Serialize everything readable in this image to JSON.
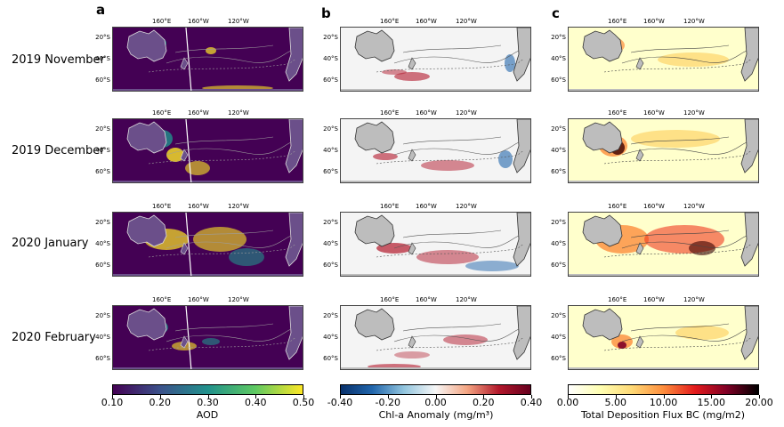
{
  "panel_letters": [
    "a",
    "b",
    "c"
  ],
  "rows": [
    "2019 November",
    "2019 December",
    "2020 January",
    "2020 February"
  ],
  "lon_labels": [
    "160°E",
    "160°W",
    "120°W"
  ],
  "lat_labels": [
    "20°S",
    "40°S",
    "60°S"
  ],
  "colorbars": [
    {
      "label": "AOD",
      "ticks": [
        "0.10",
        "0.20",
        "0.30",
        "0.40",
        "0.50"
      ]
    },
    {
      "label": "Chl-a Anomaly (mg/m³)",
      "ticks": [
        "-0.40",
        "-0.20",
        "0.00",
        "0.20",
        "0.40"
      ]
    },
    {
      "label": "Total Deposition Flux BC (mg/m2)",
      "ticks": [
        "0.00",
        "5.00",
        "10.00",
        "15.00",
        "20.00"
      ]
    }
  ],
  "colors": {
    "aod_low": "#440154",
    "aod_mid": "#21918c",
    "aod_high": "#fde725",
    "chl_neg": "#2166ac",
    "chl_pos": "#b2182b",
    "bc_low": "#ffffcc",
    "bc_high": "#000000",
    "land": "#bdbdbd"
  }
}
